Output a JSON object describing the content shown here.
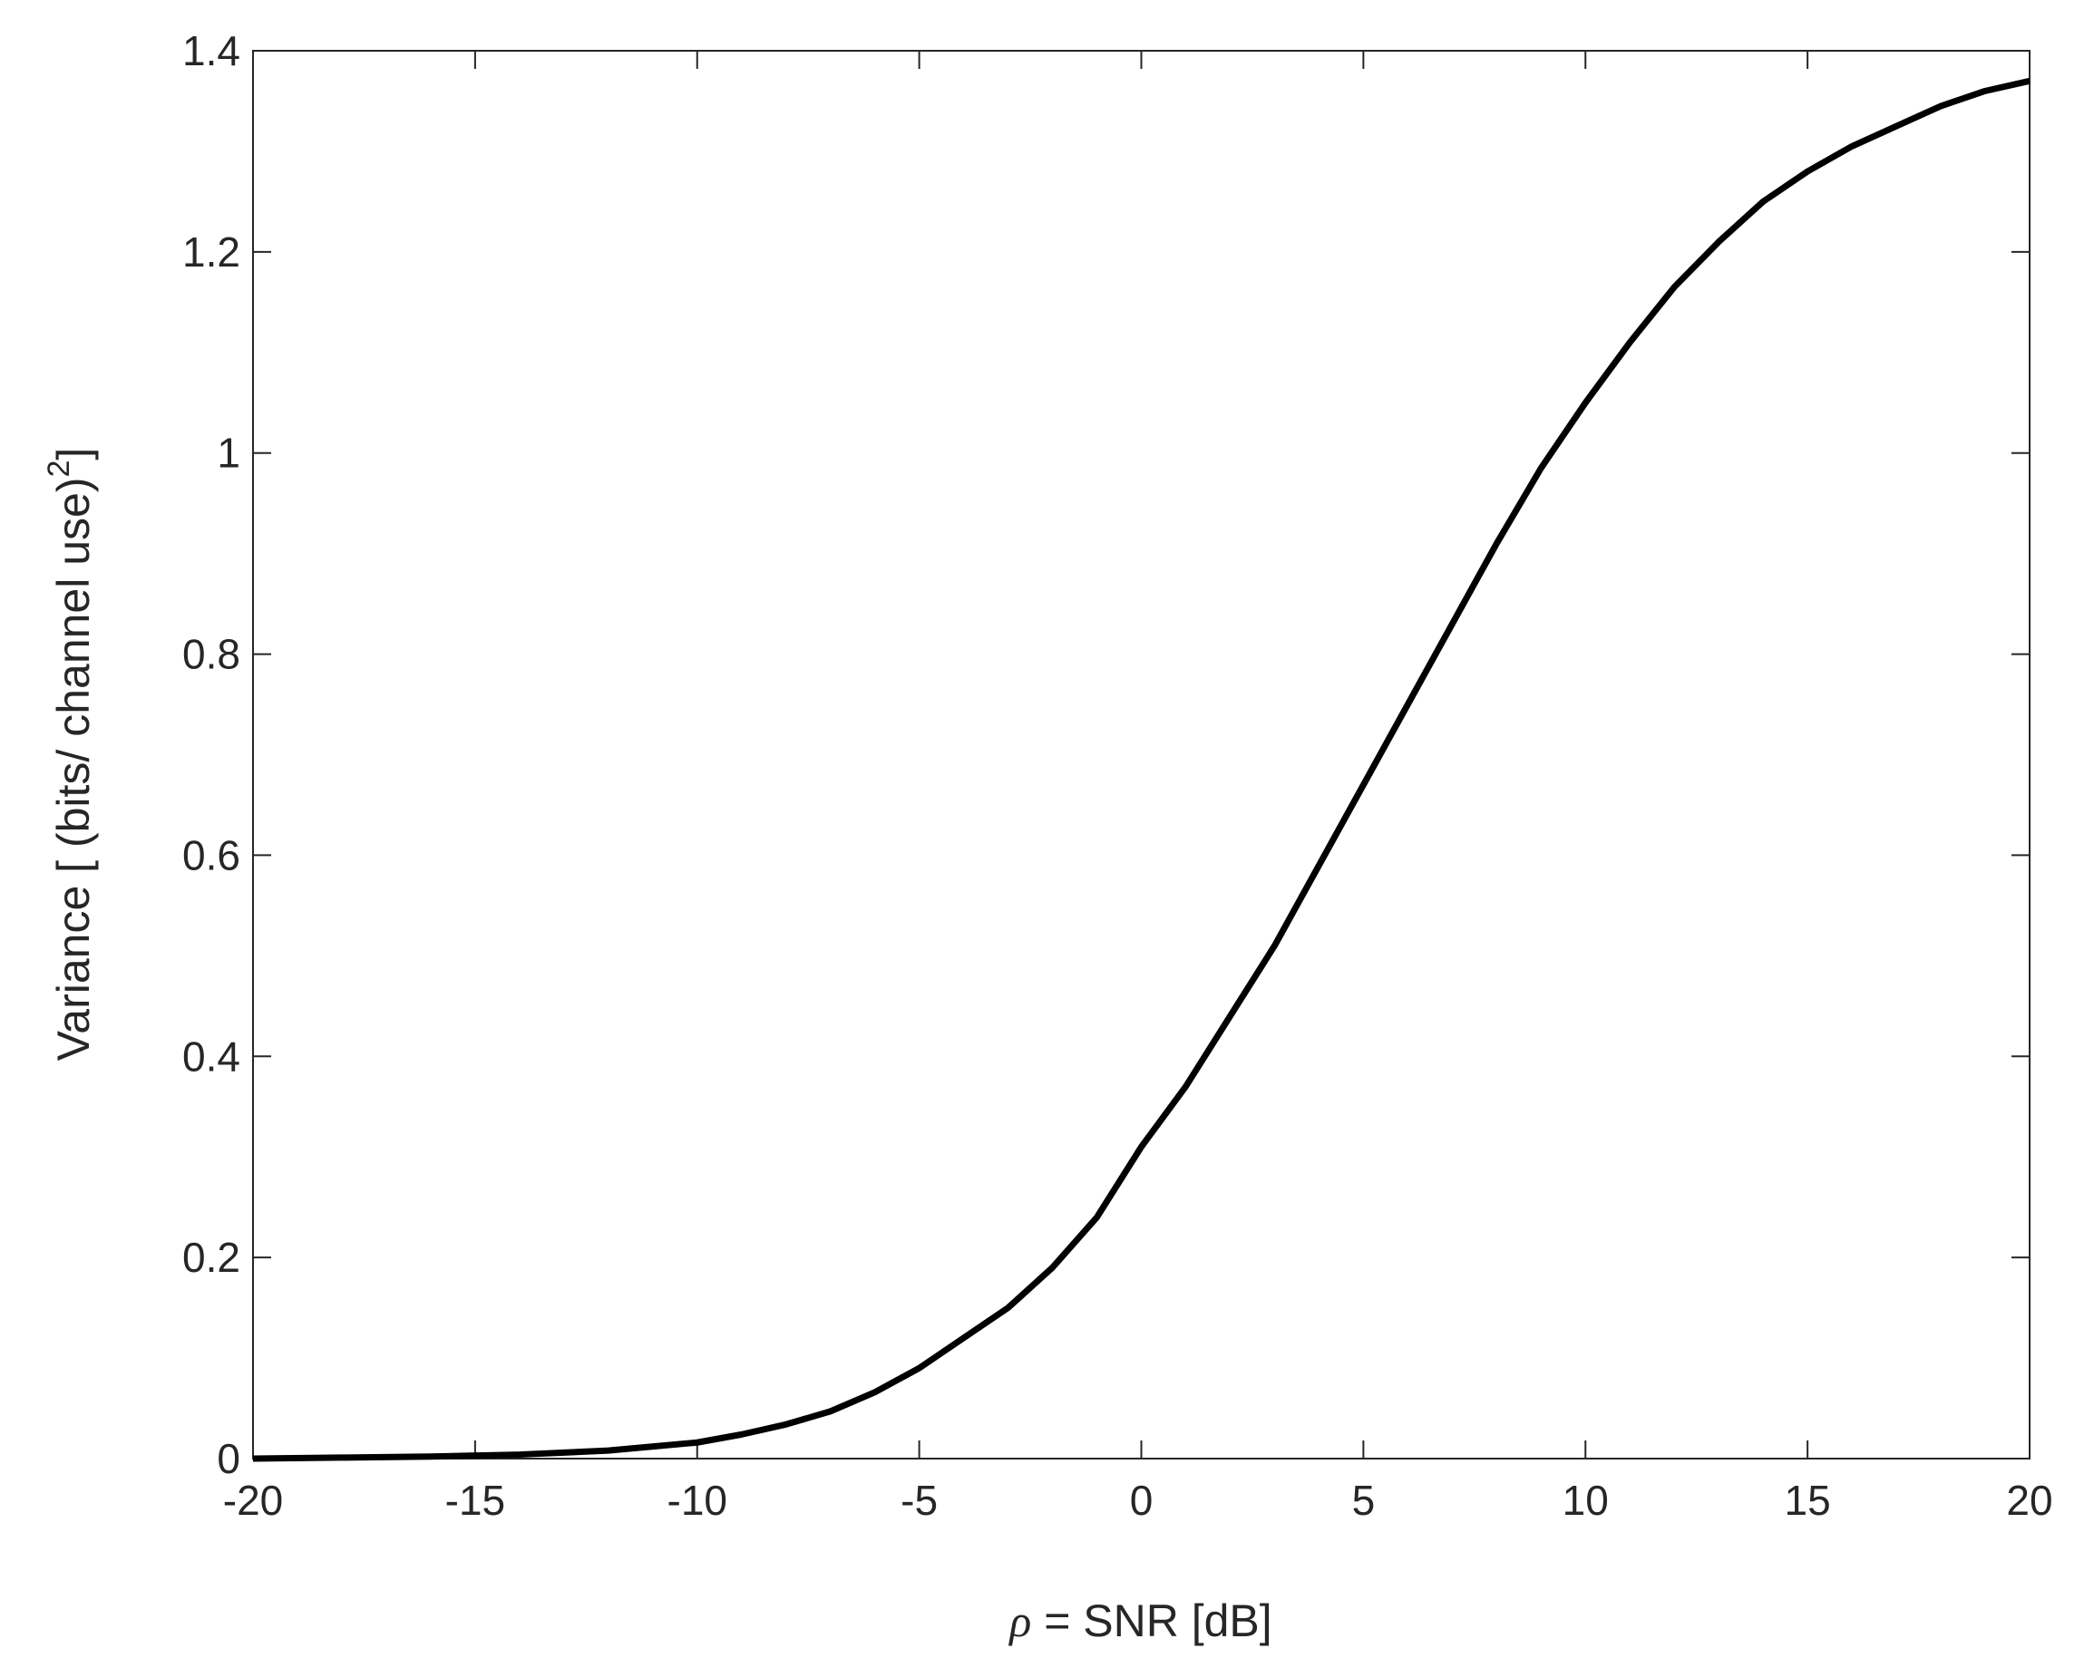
{
  "chart_data": {
    "type": "line",
    "xlabel": [
      "ρ",
      " = SNR  [dB]"
    ],
    "ylabel": [
      "Variance  [ (bits/ channel use)",
      "2",
      "]"
    ],
    "x": [
      -20,
      -18,
      -16,
      -14,
      -12,
      -10,
      -9,
      -8,
      -7,
      -6,
      -5,
      -4,
      -3,
      -2,
      -1,
      0,
      1,
      2,
      3,
      4,
      5,
      6,
      7,
      8,
      9,
      10,
      11,
      12,
      13,
      14,
      15,
      16,
      17,
      18,
      19,
      20
    ],
    "series": [
      {
        "color": "#000000",
        "values": [
          0,
          0.001,
          0.002,
          0.004,
          0.008,
          0.016,
          0.024,
          0.034,
          0.047,
          0.066,
          0.09,
          0.12,
          0.15,
          0.19,
          0.24,
          0.31,
          0.37,
          0.44,
          0.51,
          0.59,
          0.67,
          0.75,
          0.83,
          0.91,
          0.985,
          1.05,
          1.11,
          1.165,
          1.21,
          1.25,
          1.28,
          1.305,
          1.325,
          1.345,
          1.36,
          1.37
        ]
      }
    ],
    "xlim": [
      -20,
      20
    ],
    "xticks": [
      -20,
      -15,
      -10,
      -5,
      0,
      5,
      10,
      15,
      20
    ],
    "ylim": [
      0,
      1.4
    ],
    "yticks": [
      0,
      0.2,
      0.4,
      0.6,
      0.8,
      1,
      1.2,
      1.4
    ]
  }
}
